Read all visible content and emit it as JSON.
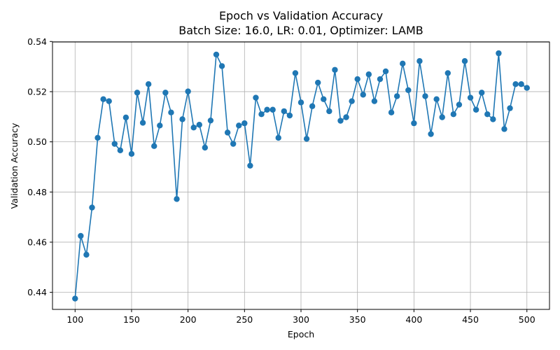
{
  "chart_data": {
    "type": "line",
    "title": "Epoch vs Validation Accuracy",
    "subtitle": "Batch Size: 16.0, LR: 0.01, Optimizer: LAMB",
    "xlabel": "Epoch",
    "ylabel": "Validation Accuracy",
    "xlim": [
      80,
      520
    ],
    "ylim": [
      0.4332,
      0.5398
    ],
    "xticks": [
      100,
      150,
      200,
      250,
      300,
      350,
      400,
      450,
      500
    ],
    "xtick_labels": [
      "100",
      "150",
      "200",
      "250",
      "300",
      "350",
      "400",
      "450",
      "500"
    ],
    "yticks": [
      0.44,
      0.46,
      0.48,
      0.5,
      0.52,
      0.54
    ],
    "ytick_labels": [
      "0.44",
      "0.46",
      "0.48",
      "0.50",
      "0.52",
      "0.54"
    ],
    "grid": true,
    "color": "#1f77b4",
    "marker": "circle",
    "series": [
      {
        "x": [
          100,
          105,
          110,
          115,
          120,
          125,
          130,
          135,
          140,
          145,
          150,
          155,
          160,
          165,
          170,
          175,
          180,
          185,
          190,
          195,
          200,
          205,
          210,
          215,
          220,
          225,
          230,
          235,
          240,
          245,
          250,
          255,
          260,
          265,
          270,
          275,
          280,
          285,
          290,
          295,
          300,
          305,
          310,
          315,
          320,
          325,
          330,
          335,
          340,
          345,
          350,
          355,
          360,
          365,
          370,
          375,
          380,
          385,
          390,
          395,
          400,
          405,
          410,
          415,
          420,
          425,
          430,
          435,
          440,
          445,
          450,
          455,
          460,
          465,
          470,
          475,
          480,
          485,
          490,
          495,
          500
        ],
        "y": [
          0.4375,
          0.4625,
          0.455,
          0.4738,
          0.5016,
          0.517,
          0.5162,
          0.4992,
          0.4966,
          0.5097,
          0.4952,
          0.5196,
          0.5076,
          0.523,
          0.4983,
          0.5065,
          0.5196,
          0.5117,
          0.4772,
          0.509,
          0.5201,
          0.5057,
          0.5068,
          0.4977,
          0.5085,
          0.5348,
          0.5302,
          0.5037,
          0.4992,
          0.5065,
          0.5074,
          0.4905,
          0.5176,
          0.511,
          0.5128,
          0.5128,
          0.5016,
          0.5122,
          0.5105,
          0.5274,
          0.5157,
          0.5012,
          0.5142,
          0.5236,
          0.517,
          0.5122,
          0.5287,
          0.5084,
          0.5098,
          0.5162,
          0.525,
          0.5188,
          0.5269,
          0.5162,
          0.525,
          0.5281,
          0.5117,
          0.5182,
          0.5312,
          0.5206,
          0.5074,
          0.5322,
          0.5182,
          0.5031,
          0.517,
          0.5098,
          0.5274,
          0.511,
          0.5148,
          0.5322,
          0.5176,
          0.5128,
          0.5196,
          0.511,
          0.509,
          0.5353,
          0.5051,
          0.5134,
          0.523,
          0.523,
          0.5215
        ]
      }
    ]
  }
}
